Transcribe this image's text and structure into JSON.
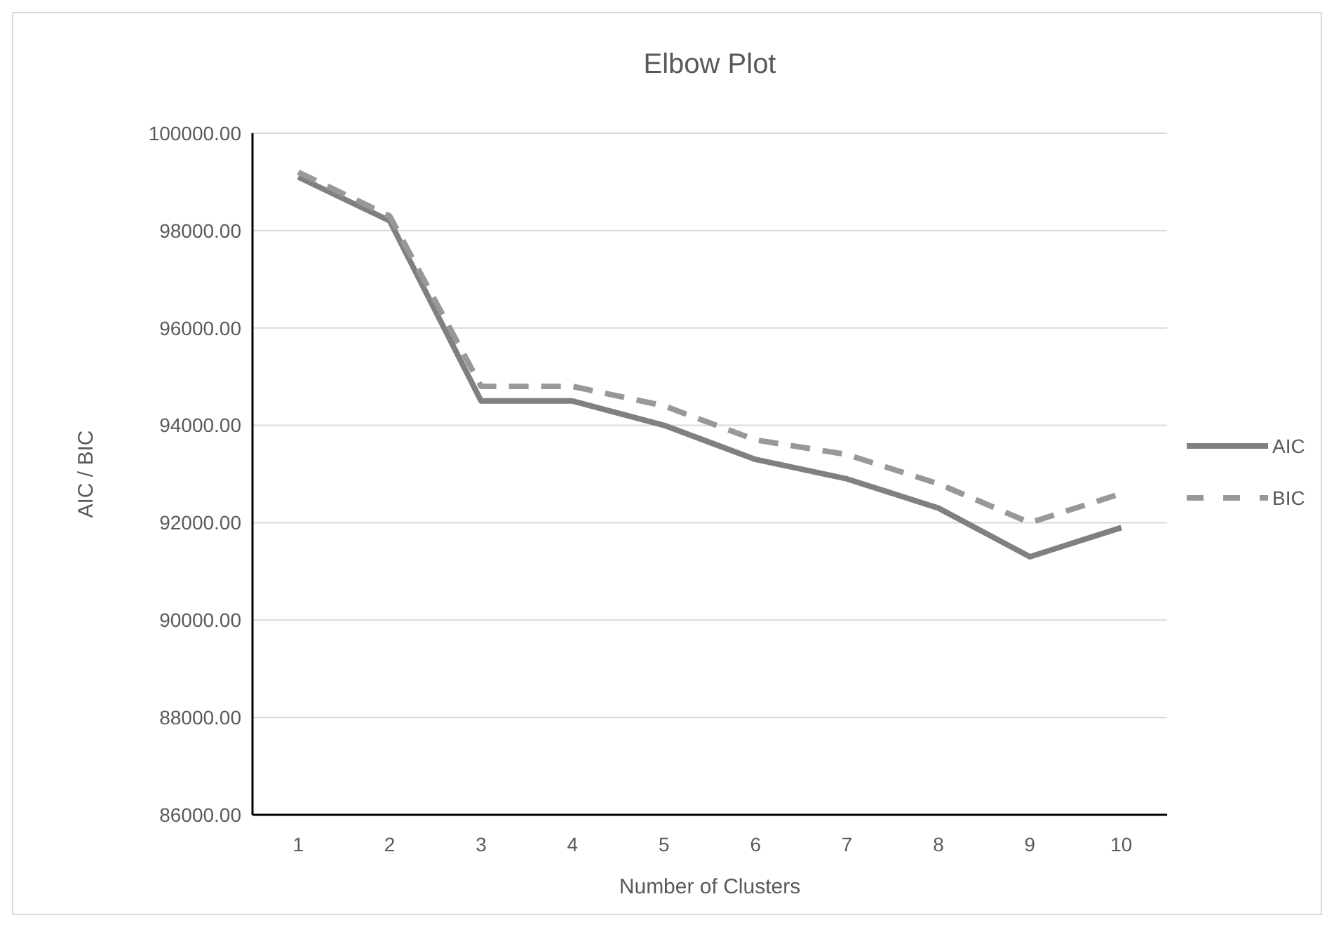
{
  "chart_data": {
    "type": "line",
    "title": "Elbow Plot",
    "xlabel": "Number of Clusters",
    "ylabel": "AIC / BIC",
    "categories": [
      "1",
      "2",
      "3",
      "4",
      "5",
      "6",
      "7",
      "8",
      "9",
      "10"
    ],
    "series": [
      {
        "name": "AIC",
        "color": "#808080",
        "line_style": "solid",
        "values": [
          99100,
          98200,
          94500,
          94500,
          94000,
          93300,
          92900,
          92300,
          91300,
          91900
        ]
      },
      {
        "name": "BIC",
        "color": "#989898",
        "line_style": "dashed",
        "values": [
          99200,
          98300,
          94800,
          94800,
          94400,
          93700,
          93400,
          92800,
          92000,
          92600
        ]
      }
    ],
    "ylim": [
      86000,
      100000
    ],
    "yticks": [
      {
        "value": 86000,
        "label": "86000.00"
      },
      {
        "value": 88000,
        "label": "88000.00"
      },
      {
        "value": 90000,
        "label": "90000.00"
      },
      {
        "value": 92000,
        "label": "92000.00"
      },
      {
        "value": 94000,
        "label": "94000.00"
      },
      {
        "value": 96000,
        "label": "96000.00"
      },
      {
        "value": 98000,
        "label": "98000.00"
      },
      {
        "value": 100000,
        "label": "100000.00"
      }
    ],
    "grid": "y",
    "legend": "right",
    "marker": "none"
  }
}
